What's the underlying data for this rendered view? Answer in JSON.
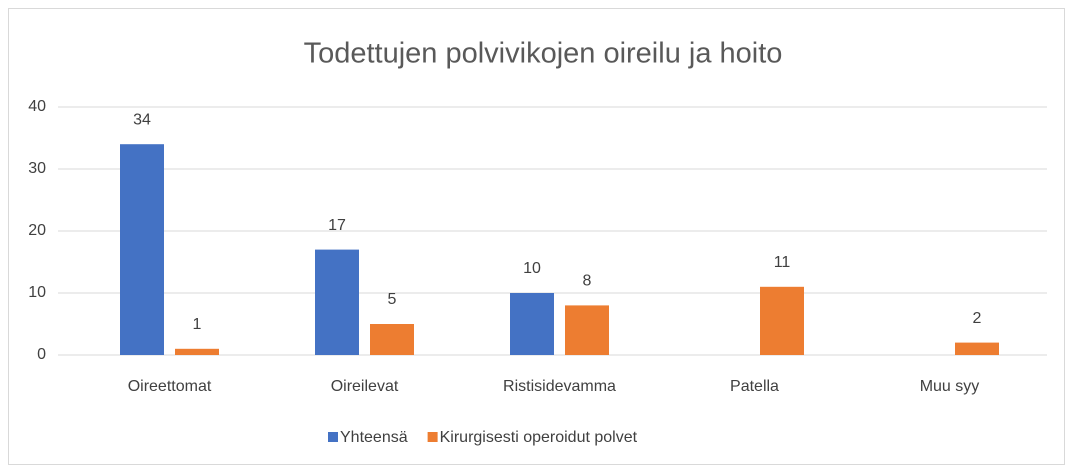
{
  "chart_data": {
    "type": "bar",
    "title": "Todettujen polvivikojen oireilu ja hoito",
    "categories": [
      "Oireettomat",
      "Oireilevat",
      "Ristisidevamma",
      "Patella",
      "Muu syy"
    ],
    "series": [
      {
        "name": "Yhteensä",
        "color": "#4472c4",
        "values": [
          34,
          17,
          10,
          null,
          null
        ]
      },
      {
        "name": "Kirurgisesti operoidut polvet",
        "color": "#ed7d31",
        "values": [
          1,
          5,
          8,
          11,
          2
        ]
      }
    ],
    "ylim": [
      0,
      40
    ],
    "yticks": [
      0,
      10,
      20,
      30,
      40
    ],
    "grid": true,
    "legend": "bottom"
  }
}
